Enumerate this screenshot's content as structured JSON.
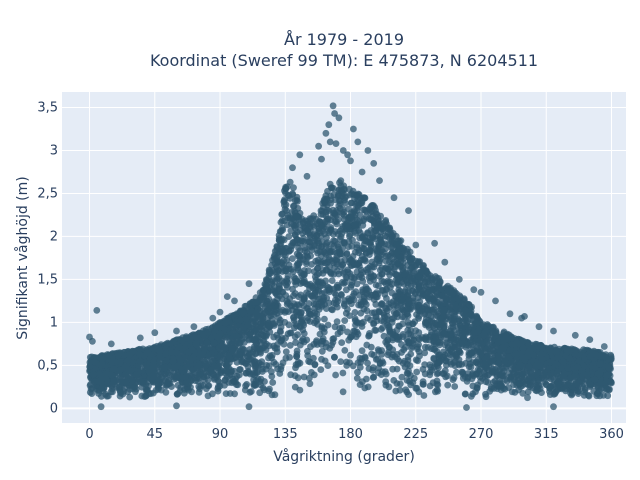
{
  "chart_data": {
    "type": "scatter",
    "title": [
      "År 1979 - 2019",
      "Koordinat (Sweref 99 TM): E 475873, N 6204511"
    ],
    "xlabel": "Vågriktning (grader)",
    "ylabel": "Signifikant våghöjd (m)",
    "xlim": [
      -19,
      370
    ],
    "ylim": [
      -0.17,
      3.68
    ],
    "x_ticks": [
      0,
      45,
      90,
      135,
      180,
      225,
      270,
      315,
      360
    ],
    "x_tick_labels": [
      "0",
      "45",
      "90",
      "135",
      "180",
      "225",
      "270",
      "315",
      "360"
    ],
    "y_ticks": [
      0,
      0.5,
      1,
      1.5,
      2,
      2.5,
      3,
      3.5
    ],
    "y_tick_labels": [
      "0",
      "0,5",
      "1",
      "1,5",
      "2",
      "2,5",
      "3",
      "3,5"
    ],
    "grid": true,
    "marker_color": "#2f5870",
    "plot_bg": "#e5ecf6",
    "envelope": {
      "x": [
        0,
        10,
        20,
        30,
        45,
        60,
        75,
        90,
        105,
        120,
        130,
        135,
        140,
        145,
        150,
        160,
        165,
        170,
        180,
        190,
        200,
        210,
        220,
        225,
        235,
        245,
        255,
        265,
        270,
        280,
        290,
        300,
        315,
        330,
        345,
        360
      ],
      "y_max": [
        0.6,
        0.62,
        0.65,
        0.68,
        0.72,
        0.8,
        0.88,
        1.0,
        1.15,
        1.4,
        1.95,
        2.65,
        2.7,
        2.3,
        2.2,
        2.35,
        2.6,
        2.7,
        2.55,
        2.45,
        2.3,
        2.05,
        1.85,
        1.75,
        1.6,
        1.45,
        1.35,
        1.15,
        1.0,
        0.95,
        0.85,
        0.78,
        0.72,
        0.7,
        0.68,
        0.62
      ],
      "y_min": 0.12
    },
    "sample_points": [
      {
        "x": 0,
        "y": 0.83
      },
      {
        "x": 2,
        "y": 0.78
      },
      {
        "x": 5,
        "y": 1.14
      },
      {
        "x": 15,
        "y": 0.75
      },
      {
        "x": 35,
        "y": 0.82
      },
      {
        "x": 45,
        "y": 0.88
      },
      {
        "x": 60,
        "y": 0.9
      },
      {
        "x": 72,
        "y": 0.95
      },
      {
        "x": 85,
        "y": 1.05
      },
      {
        "x": 90,
        "y": 1.12
      },
      {
        "x": 95,
        "y": 1.3
      },
      {
        "x": 100,
        "y": 1.25
      },
      {
        "x": 110,
        "y": 1.45
      },
      {
        "x": 140,
        "y": 2.8
      },
      {
        "x": 145,
        "y": 2.95
      },
      {
        "x": 150,
        "y": 2.7
      },
      {
        "x": 158,
        "y": 3.05
      },
      {
        "x": 160,
        "y": 2.9
      },
      {
        "x": 163,
        "y": 3.2
      },
      {
        "x": 165,
        "y": 3.3
      },
      {
        "x": 166,
        "y": 3.1
      },
      {
        "x": 168,
        "y": 3.52
      },
      {
        "x": 169,
        "y": 3.43
      },
      {
        "x": 170,
        "y": 3.08
      },
      {
        "x": 172,
        "y": 3.38
      },
      {
        "x": 175,
        "y": 3.0
      },
      {
        "x": 178,
        "y": 2.95
      },
      {
        "x": 180,
        "y": 2.88
      },
      {
        "x": 182,
        "y": 3.25
      },
      {
        "x": 185,
        "y": 3.1
      },
      {
        "x": 188,
        "y": 2.75
      },
      {
        "x": 192,
        "y": 3.0
      },
      {
        "x": 196,
        "y": 2.85
      },
      {
        "x": 200,
        "y": 2.65
      },
      {
        "x": 210,
        "y": 2.45
      },
      {
        "x": 220,
        "y": 2.3
      },
      {
        "x": 225,
        "y": 1.9
      },
      {
        "x": 238,
        "y": 1.92
      },
      {
        "x": 245,
        "y": 1.7
      },
      {
        "x": 255,
        "y": 1.5
      },
      {
        "x": 265,
        "y": 1.38
      },
      {
        "x": 270,
        "y": 1.35
      },
      {
        "x": 280,
        "y": 1.25
      },
      {
        "x": 290,
        "y": 1.1
      },
      {
        "x": 298,
        "y": 1.05
      },
      {
        "x": 300,
        "y": 1.07
      },
      {
        "x": 310,
        "y": 0.95
      },
      {
        "x": 320,
        "y": 0.9
      },
      {
        "x": 335,
        "y": 0.85
      },
      {
        "x": 345,
        "y": 0.8
      },
      {
        "x": 355,
        "y": 0.72
      },
      {
        "x": 8,
        "y": 0.02
      },
      {
        "x": 60,
        "y": 0.03
      },
      {
        "x": 110,
        "y": 0.02
      },
      {
        "x": 260,
        "y": 0.01
      },
      {
        "x": 320,
        "y": 0.02
      }
    ]
  }
}
